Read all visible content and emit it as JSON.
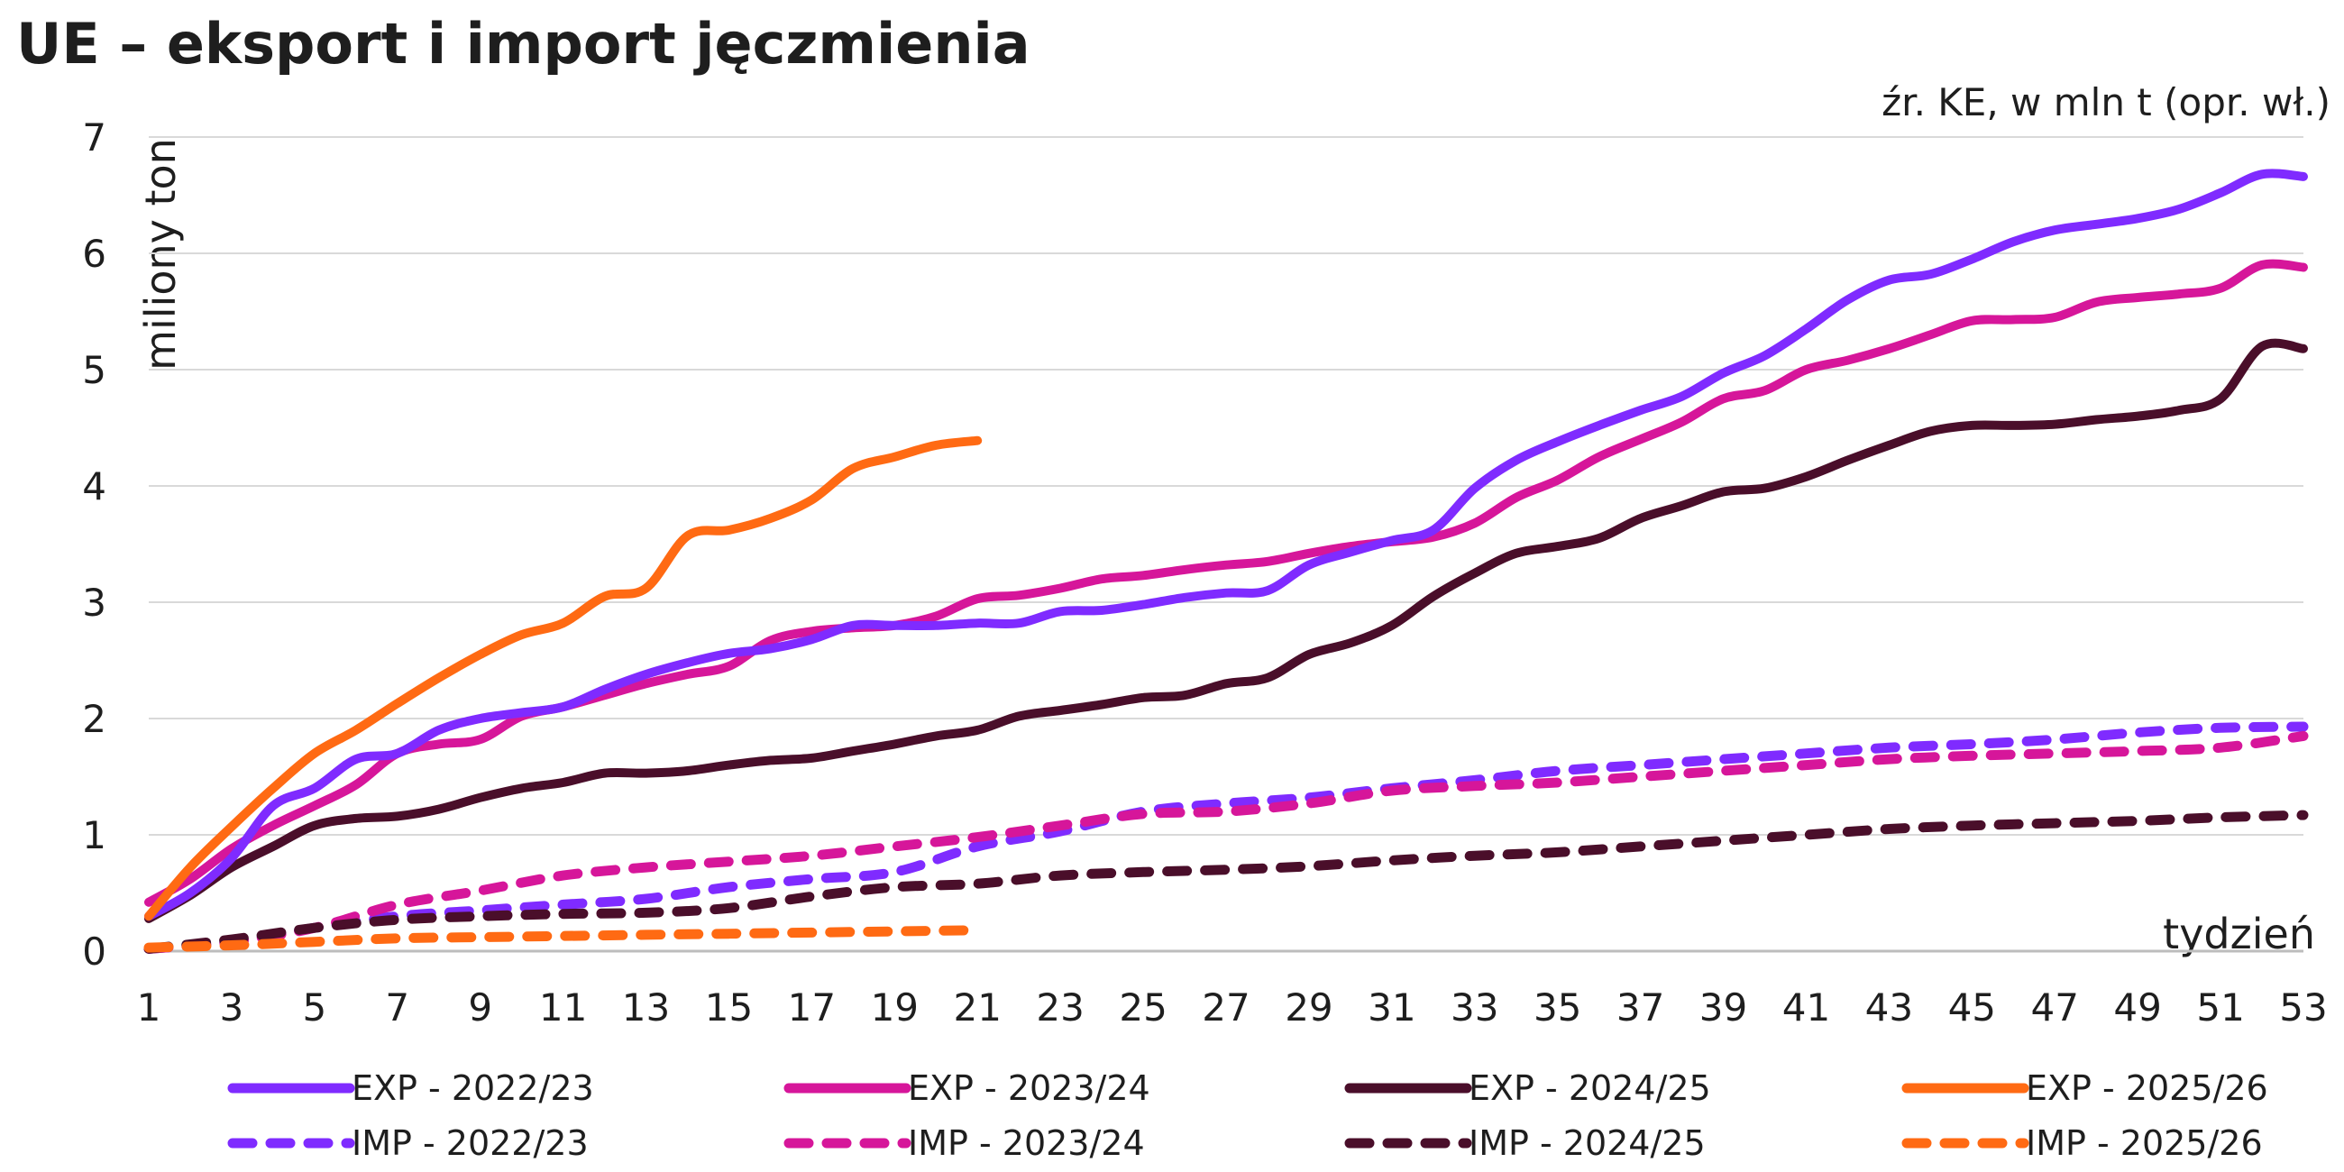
{
  "title": "UE – eksport i import jęczmienia",
  "source_note": "źr. KE, w mln t (opr. wł.)",
  "chart_data": {
    "type": "line",
    "title": "UE – eksport i import jęczmienia",
    "subtitle": "źr. KE, w mln t (opr. wł.)",
    "xlabel": "tydzień",
    "ylabel": "miliony ton",
    "xlim": [
      1,
      53
    ],
    "ylim": [
      0,
      7
    ],
    "x_ticks": [
      1,
      3,
      5,
      7,
      9,
      11,
      13,
      15,
      17,
      19,
      21,
      23,
      25,
      27,
      29,
      31,
      33,
      35,
      37,
      39,
      41,
      43,
      45,
      47,
      49,
      51,
      53
    ],
    "y_ticks": [
      0,
      1,
      2,
      3,
      4,
      5,
      6,
      7
    ],
    "grid": "horizontal",
    "legend_position": "bottom",
    "series": [
      {
        "name": "EXP - 2022/23",
        "color": "#7f2bff",
        "dashed": false,
        "x": [
          1,
          2,
          3,
          4,
          5,
          6,
          7,
          8,
          9,
          10,
          11,
          12,
          13,
          14,
          15,
          16,
          17,
          18,
          19,
          20,
          21,
          22,
          23,
          24,
          25,
          26,
          27,
          28,
          29,
          30,
          31,
          32,
          33,
          34,
          35,
          36,
          37,
          38,
          39,
          40,
          41,
          42,
          43,
          44,
          45,
          46,
          47,
          48,
          49,
          50,
          51,
          52,
          53
        ],
        "values": [
          0.3,
          0.5,
          0.8,
          1.25,
          1.4,
          1.65,
          1.7,
          1.9,
          2.0,
          2.05,
          2.1,
          2.25,
          2.38,
          2.48,
          2.56,
          2.6,
          2.68,
          2.8,
          2.8,
          2.8,
          2.82,
          2.82,
          2.92,
          2.93,
          2.98,
          3.04,
          3.08,
          3.1,
          3.32,
          3.43,
          3.53,
          3.62,
          3.98,
          4.22,
          4.38,
          4.52,
          4.65,
          4.77,
          4.97,
          5.12,
          5.35,
          5.6,
          5.77,
          5.82,
          5.95,
          6.1,
          6.2,
          6.25,
          6.3,
          6.38,
          6.52,
          6.68,
          6.66
        ]
      },
      {
        "name": "EXP - 2023/24",
        "color": "#d6169a",
        "dashed": false,
        "x": [
          1,
          2,
          3,
          4,
          5,
          6,
          7,
          8,
          9,
          10,
          11,
          12,
          13,
          14,
          15,
          16,
          17,
          18,
          19,
          20,
          21,
          22,
          23,
          24,
          25,
          26,
          27,
          28,
          29,
          30,
          31,
          32,
          33,
          34,
          35,
          36,
          37,
          38,
          39,
          40,
          41,
          42,
          43,
          44,
          45,
          46,
          47,
          48,
          49,
          50,
          51,
          52,
          53
        ],
        "values": [
          0.42,
          0.62,
          0.88,
          1.08,
          1.25,
          1.43,
          1.7,
          1.78,
          1.82,
          2.02,
          2.1,
          2.2,
          2.3,
          2.38,
          2.45,
          2.67,
          2.75,
          2.78,
          2.8,
          2.88,
          3.03,
          3.06,
          3.12,
          3.2,
          3.23,
          3.28,
          3.32,
          3.35,
          3.42,
          3.48,
          3.52,
          3.56,
          3.68,
          3.9,
          4.05,
          4.25,
          4.4,
          4.55,
          4.75,
          4.82,
          5.0,
          5.08,
          5.18,
          5.3,
          5.42,
          5.43,
          5.45,
          5.58,
          5.62,
          5.65,
          5.7,
          5.9,
          5.88
        ]
      },
      {
        "name": "EXP - 2024/25",
        "color": "#4a0e2a",
        "dashed": false,
        "x": [
          1,
          2,
          3,
          4,
          5,
          6,
          7,
          8,
          9,
          10,
          11,
          12,
          13,
          14,
          15,
          16,
          17,
          18,
          19,
          20,
          21,
          22,
          23,
          24,
          25,
          26,
          27,
          28,
          29,
          30,
          31,
          32,
          33,
          34,
          35,
          36,
          37,
          38,
          39,
          40,
          41,
          42,
          43,
          44,
          45,
          46,
          47,
          48,
          49,
          50,
          51,
          52,
          53
        ],
        "values": [
          0.28,
          0.48,
          0.72,
          0.9,
          1.08,
          1.14,
          1.16,
          1.22,
          1.32,
          1.4,
          1.45,
          1.53,
          1.53,
          1.55,
          1.6,
          1.64,
          1.66,
          1.72,
          1.78,
          1.85,
          1.9,
          2.02,
          2.07,
          2.12,
          2.18,
          2.2,
          2.3,
          2.35,
          2.55,
          2.65,
          2.8,
          3.05,
          3.25,
          3.42,
          3.48,
          3.55,
          3.72,
          3.83,
          3.95,
          3.98,
          4.08,
          4.22,
          4.35,
          4.47,
          4.52,
          4.52,
          4.53,
          4.57,
          4.6,
          4.65,
          4.75,
          5.2,
          5.18
        ]
      },
      {
        "name": "EXP - 2025/26",
        "color": "#ff6a13",
        "dashed": false,
        "x": [
          1,
          2,
          3,
          4,
          5,
          6,
          7,
          8,
          9,
          10,
          11,
          12,
          13,
          14,
          15,
          16,
          17,
          18,
          19,
          20,
          21
        ],
        "values": [
          0.3,
          0.72,
          1.07,
          1.4,
          1.7,
          1.9,
          2.13,
          2.35,
          2.55,
          2.72,
          2.82,
          3.05,
          3.12,
          3.57,
          3.62,
          3.72,
          3.88,
          4.15,
          4.25,
          4.35,
          4.39
        ]
      },
      {
        "name": "IMP - 2022/23",
        "color": "#7f2bff",
        "dashed": true,
        "x": [
          1,
          3,
          5,
          7,
          9,
          11,
          13,
          15,
          17,
          19,
          21,
          23,
          25,
          27,
          29,
          31,
          33,
          35,
          37,
          39,
          41,
          43,
          45,
          47,
          49,
          51,
          53
        ],
        "values": [
          0.02,
          0.08,
          0.2,
          0.3,
          0.35,
          0.4,
          0.45,
          0.55,
          0.62,
          0.68,
          0.9,
          1.03,
          1.2,
          1.27,
          1.32,
          1.4,
          1.47,
          1.55,
          1.6,
          1.65,
          1.7,
          1.75,
          1.78,
          1.82,
          1.88,
          1.92,
          1.93
        ]
      },
      {
        "name": "IMP - 2023/24",
        "color": "#d6169a",
        "dashed": true,
        "x": [
          1,
          3,
          5,
          7,
          9,
          11,
          13,
          15,
          17,
          19,
          21,
          23,
          25,
          27,
          29,
          31,
          33,
          35,
          37,
          39,
          41,
          43,
          45,
          47,
          49,
          51,
          53
        ],
        "values": [
          0.02,
          0.08,
          0.2,
          0.4,
          0.52,
          0.65,
          0.72,
          0.77,
          0.82,
          0.9,
          0.98,
          1.08,
          1.18,
          1.2,
          1.27,
          1.38,
          1.42,
          1.45,
          1.5,
          1.55,
          1.6,
          1.65,
          1.68,
          1.7,
          1.72,
          1.75,
          1.85
        ]
      },
      {
        "name": "IMP - 2024/25",
        "color": "#4a0e2a",
        "dashed": true,
        "x": [
          1,
          3,
          5,
          7,
          9,
          11,
          13,
          15,
          17,
          19,
          21,
          23,
          25,
          27,
          29,
          31,
          33,
          35,
          37,
          39,
          41,
          43,
          45,
          47,
          49,
          51,
          53
        ],
        "values": [
          0.02,
          0.1,
          0.2,
          0.27,
          0.3,
          0.32,
          0.33,
          0.37,
          0.47,
          0.55,
          0.58,
          0.65,
          0.68,
          0.7,
          0.73,
          0.78,
          0.82,
          0.85,
          0.9,
          0.95,
          1.0,
          1.05,
          1.08,
          1.1,
          1.12,
          1.15,
          1.17
        ]
      },
      {
        "name": "IMP - 2025/26",
        "color": "#ff6a13",
        "dashed": true,
        "x": [
          1,
          3,
          5,
          7,
          9,
          11,
          13,
          15,
          17,
          19,
          21
        ],
        "values": [
          0.03,
          0.05,
          0.08,
          0.11,
          0.12,
          0.13,
          0.14,
          0.15,
          0.16,
          0.17,
          0.18
        ]
      }
    ]
  }
}
